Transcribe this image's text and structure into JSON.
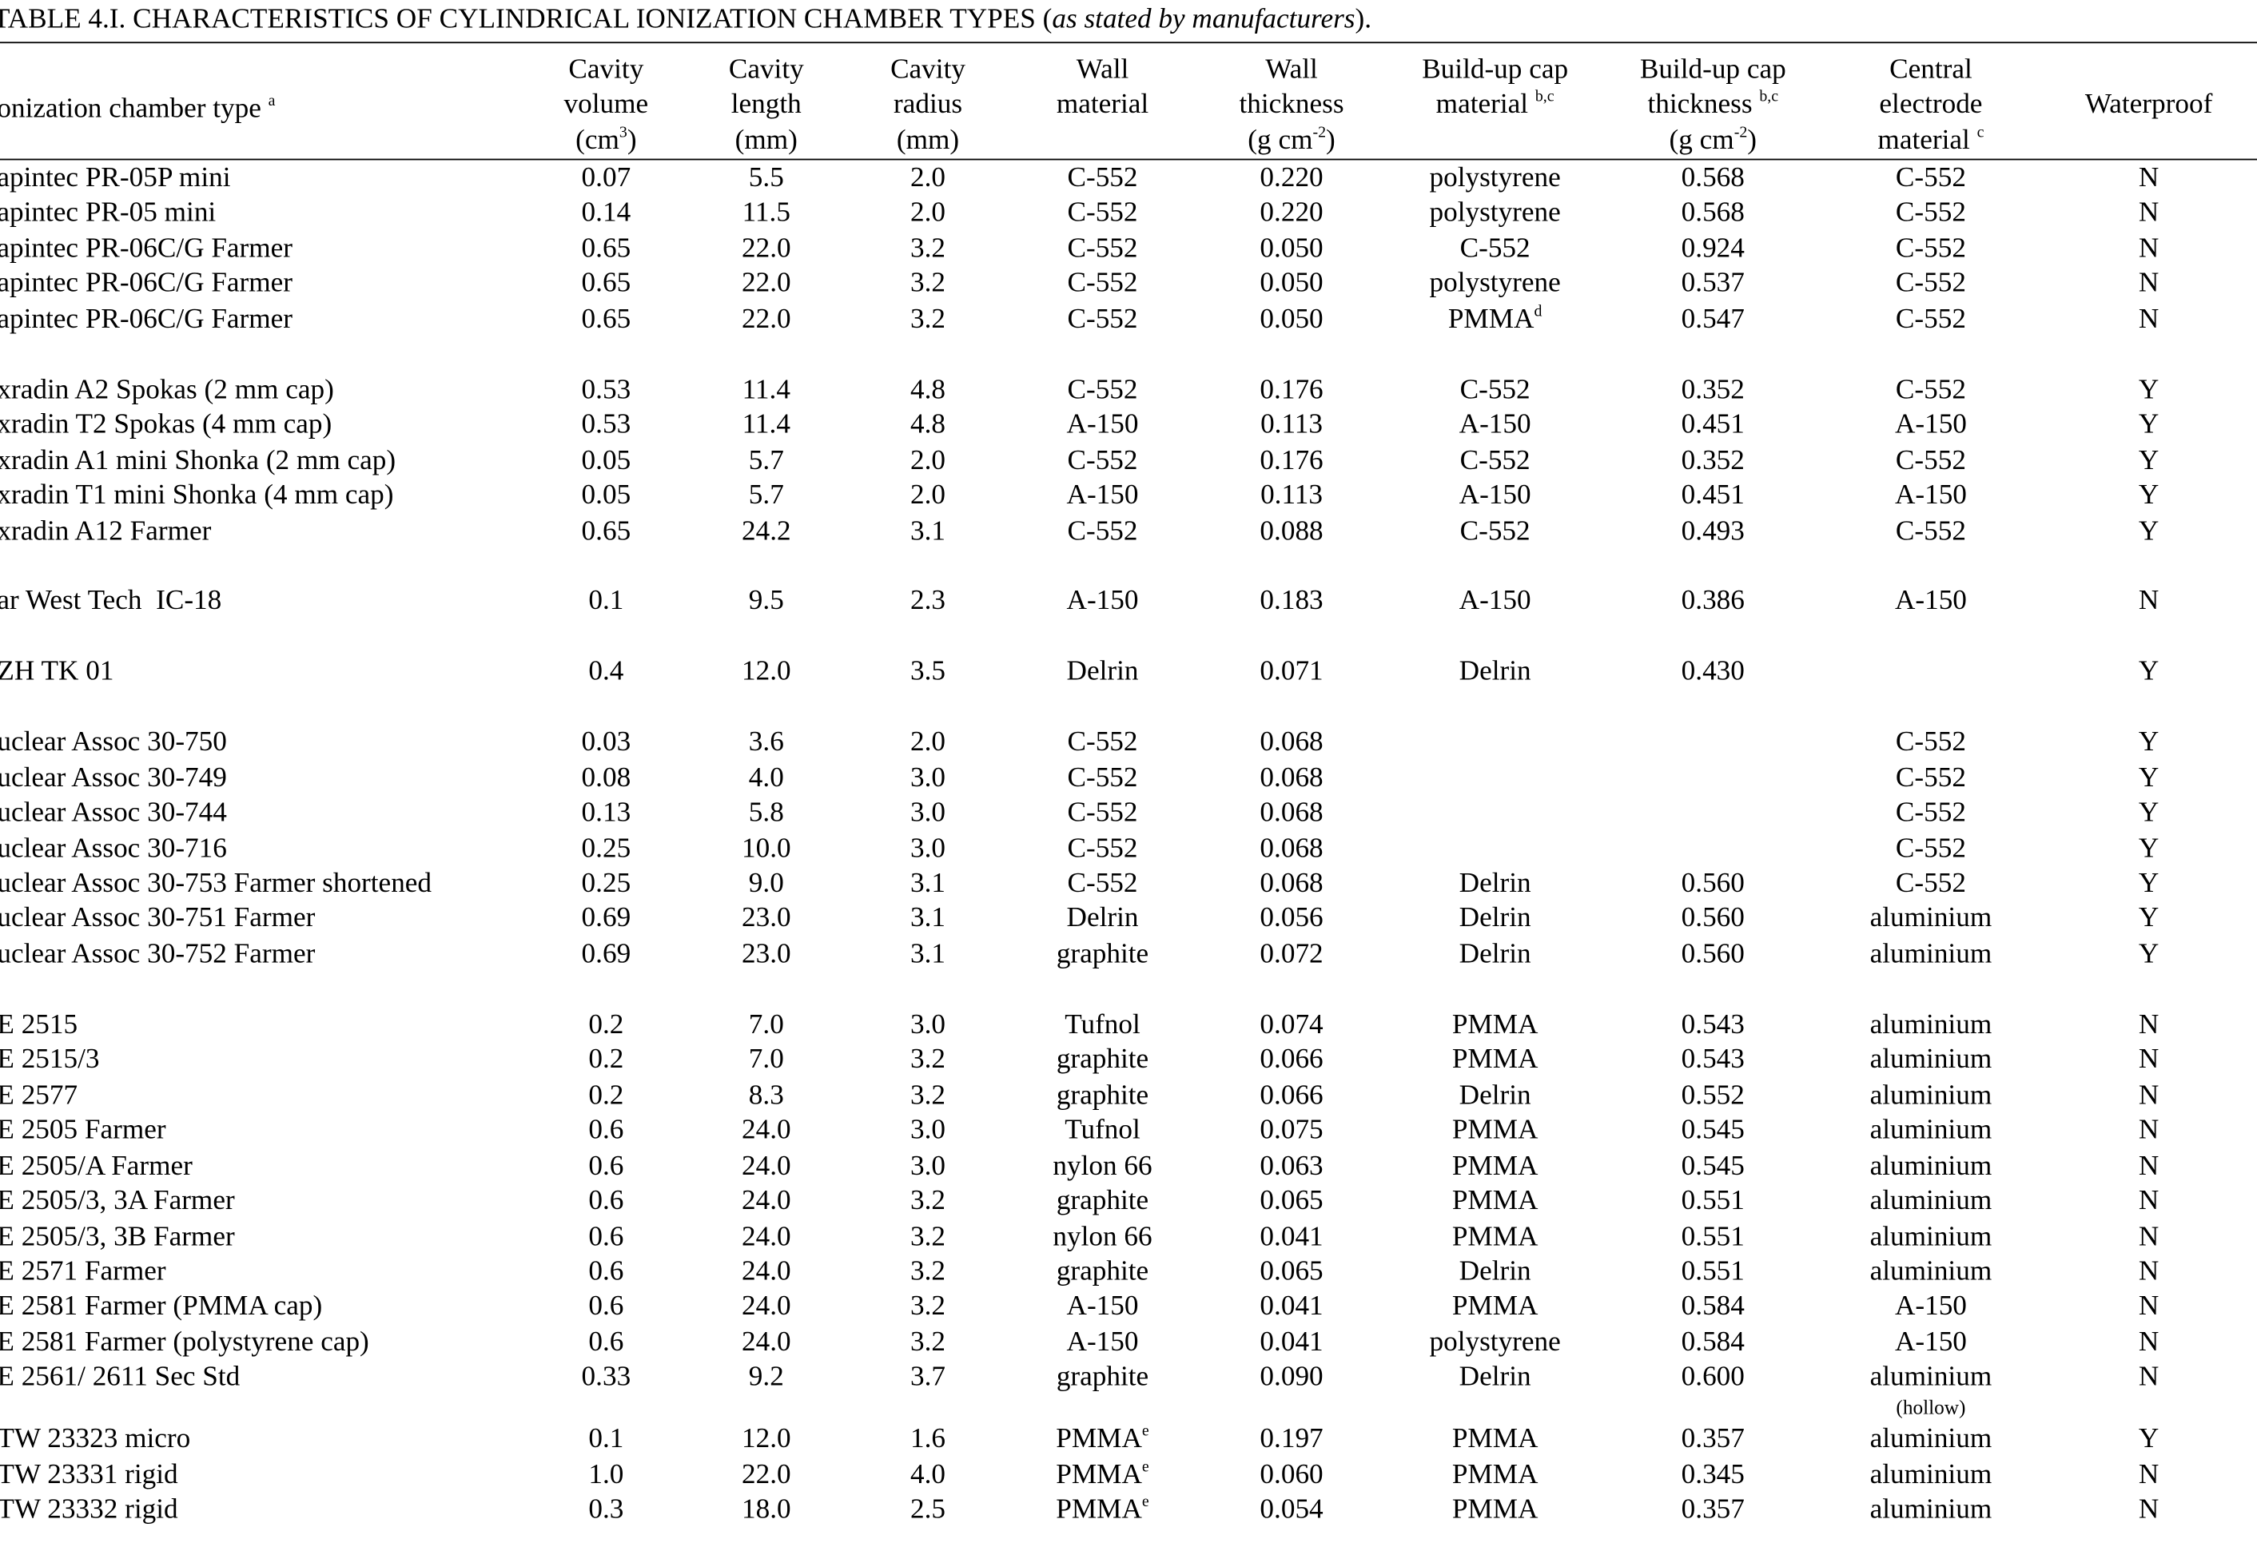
{
  "title": [
    {
      "text": "TABLE 4.I. CHARACTERISTICS OF CYLINDRICAL IONIZATION CHAMBER TYPES ("
    },
    {
      "italic": "as stated by manufacturers"
    },
    {
      "text": ")."
    }
  ],
  "header": {
    "columns": [
      {
        "lines": [
          [
            {
              "text": "onization chamber type "
            },
            {
              "sup": "a"
            }
          ]
        ]
      },
      {
        "lines": [
          [
            {
              "text": "Cavity"
            }
          ],
          [
            {
              "text": "volume"
            }
          ],
          [
            {
              "text": "(cm"
            },
            {
              "sup": "3"
            },
            {
              "text": ")"
            }
          ]
        ]
      },
      {
        "lines": [
          [
            {
              "text": "Cavity"
            }
          ],
          [
            {
              "text": "length"
            }
          ],
          [
            {
              "text": "(mm)"
            }
          ]
        ]
      },
      {
        "lines": [
          [
            {
              "text": "Cavity"
            }
          ],
          [
            {
              "text": "radius"
            }
          ],
          [
            {
              "text": "(mm)"
            }
          ]
        ]
      },
      {
        "lines": [
          [
            {
              "text": "Wall"
            }
          ],
          [
            {
              "text": "material"
            }
          ]
        ]
      },
      {
        "lines": [
          [
            {
              "text": "Wall"
            }
          ],
          [
            {
              "text": "thickness"
            }
          ],
          [
            {
              "text": "(g cm"
            },
            {
              "sup": "-2"
            },
            {
              "text": ")"
            }
          ]
        ]
      },
      {
        "lines": [
          [
            {
              "text": "Build-up cap"
            }
          ],
          [
            {
              "text": "material "
            },
            {
              "sup": "b,c"
            }
          ]
        ]
      },
      {
        "lines": [
          [
            {
              "text": "Build-up cap"
            }
          ],
          [
            {
              "text": "thickness "
            },
            {
              "sup": "b,c"
            }
          ],
          [
            {
              "text": "(g cm"
            },
            {
              "sup": "-2"
            },
            {
              "text": ")"
            }
          ]
        ]
      },
      {
        "lines": [
          [
            {
              "text": "Central"
            }
          ],
          [
            {
              "text": "electrode"
            }
          ],
          [
            {
              "text": "material "
            },
            {
              "sup": "c"
            }
          ]
        ]
      },
      {
        "lines": [
          [
            {
              "text": "Waterproof"
            }
          ]
        ]
      }
    ]
  },
  "table": {
    "groups": [
      [
        [
          "apintec PR-05P mini",
          "0.07",
          "5.5",
          "2.0",
          "C-552",
          "0.220",
          "polystyrene",
          "0.568",
          "C-552",
          "N"
        ],
        [
          "apintec PR-05 mini",
          "0.14",
          "11.5",
          "2.0",
          "C-552",
          "0.220",
          "polystyrene",
          "0.568",
          "C-552",
          "N"
        ],
        [
          "apintec PR-06C/G Farmer",
          "0.65",
          "22.0",
          "3.2",
          "C-552",
          "0.050",
          "C-552",
          "0.924",
          "C-552",
          "N"
        ],
        [
          "apintec PR-06C/G Farmer",
          "0.65",
          "22.0",
          "3.2",
          "C-552",
          "0.050",
          "polystyrene",
          "0.537",
          "C-552",
          "N"
        ],
        [
          "apintec PR-06C/G Farmer",
          "0.65",
          "22.0",
          "3.2",
          "C-552",
          "0.050",
          {
            "text": "PMMA",
            "sup": "d"
          },
          "0.547",
          "C-552",
          "N"
        ]
      ],
      [
        [
          "xradin A2 Spokas (2 mm cap)",
          "0.53",
          "11.4",
          "4.8",
          "C-552",
          "0.176",
          "C-552",
          "0.352",
          "C-552",
          "Y"
        ],
        [
          "xradin T2 Spokas (4 mm cap)",
          "0.53",
          "11.4",
          "4.8",
          "A-150",
          "0.113",
          "A-150",
          "0.451",
          "A-150",
          "Y"
        ],
        [
          "xradin A1 mini Shonka (2 mm cap)",
          "0.05",
          "5.7",
          "2.0",
          "C-552",
          "0.176",
          "C-552",
          "0.352",
          "C-552",
          "Y"
        ],
        [
          "xradin T1 mini Shonka (4 mm cap)",
          "0.05",
          "5.7",
          "2.0",
          "A-150",
          "0.113",
          "A-150",
          "0.451",
          "A-150",
          "Y"
        ],
        [
          "xradin A12 Farmer",
          "0.65",
          "24.2",
          "3.1",
          "C-552",
          "0.088",
          "C-552",
          "0.493",
          "C-552",
          "Y"
        ]
      ],
      [
        [
          "ar West Tech  IC-18",
          "0.1",
          "9.5",
          "2.3",
          "A-150",
          "0.183",
          "A-150",
          "0.386",
          "A-150",
          "N"
        ]
      ],
      [
        [
          "ZH TK 01",
          "0.4",
          "12.0",
          "3.5",
          "Delrin",
          "0.071",
          "Delrin",
          "0.430",
          null,
          "Y"
        ]
      ],
      [
        [
          "uclear Assoc 30-750",
          "0.03",
          "3.6",
          "2.0",
          "C-552",
          "0.068",
          null,
          null,
          "C-552",
          "Y"
        ],
        [
          "uclear Assoc 30-749",
          "0.08",
          "4.0",
          "3.0",
          "C-552",
          "0.068",
          null,
          null,
          "C-552",
          "Y"
        ],
        [
          "uclear Assoc 30-744",
          "0.13",
          "5.8",
          "3.0",
          "C-552",
          "0.068",
          null,
          null,
          "C-552",
          "Y"
        ],
        [
          "uclear Assoc 30-716",
          "0.25",
          "10.0",
          "3.0",
          "C-552",
          "0.068",
          null,
          null,
          "C-552",
          "Y"
        ],
        [
          "uclear Assoc 30-753 Farmer shortened",
          "0.25",
          "9.0",
          "3.1",
          "C-552",
          "0.068",
          "Delrin",
          "0.560",
          "C-552",
          "Y"
        ],
        [
          "uclear Assoc 30-751 Farmer",
          "0.69",
          "23.0",
          "3.1",
          "Delrin",
          "0.056",
          "Delrin",
          "0.560",
          "aluminium",
          "Y"
        ],
        [
          "uclear Assoc 30-752 Farmer",
          "0.69",
          "23.0",
          "3.1",
          "graphite",
          "0.072",
          "Delrin",
          "0.560",
          "aluminium",
          "Y"
        ]
      ],
      [
        [
          "E 2515",
          "0.2",
          "7.0",
          "3.0",
          "Tufnol",
          "0.074",
          "PMMA",
          "0.543",
          "aluminium",
          "N"
        ],
        [
          "E 2515/3",
          "0.2",
          "7.0",
          "3.2",
          "graphite",
          "0.066",
          "PMMA",
          "0.543",
          "aluminium",
          "N"
        ],
        [
          "E 2577",
          "0.2",
          "8.3",
          "3.2",
          "graphite",
          "0.066",
          "Delrin",
          "0.552",
          "aluminium",
          "N"
        ],
        [
          "E 2505 Farmer",
          "0.6",
          "24.0",
          "3.0",
          "Tufnol",
          "0.075",
          "PMMA",
          "0.545",
          "aluminium",
          "N"
        ],
        [
          "E 2505/A Farmer",
          "0.6",
          "24.0",
          "3.0",
          "nylon 66",
          "0.063",
          "PMMA",
          "0.545",
          "aluminium",
          "N"
        ],
        [
          "E 2505/3, 3A Farmer",
          "0.6",
          "24.0",
          "3.2",
          "graphite",
          "0.065",
          "PMMA",
          "0.551",
          "aluminium",
          "N"
        ],
        [
          "E 2505/3, 3B Farmer",
          "0.6",
          "24.0",
          "3.2",
          "nylon 66",
          "0.041",
          "PMMA",
          "0.551",
          "aluminium",
          "N"
        ],
        [
          "E 2571 Farmer",
          "0.6",
          "24.0",
          "3.2",
          "graphite",
          "0.065",
          "Delrin",
          "0.551",
          "aluminium",
          "N"
        ],
        [
          "E 2581 Farmer (PMMA cap)",
          "0.6",
          "24.0",
          "3.2",
          "A-150",
          "0.041",
          "PMMA",
          "0.584",
          "A-150",
          "N"
        ],
        [
          "E 2581 Farmer (polystyrene cap)",
          "0.6",
          "24.0",
          "3.2",
          "A-150",
          "0.041",
          "polystyrene",
          "0.584",
          "A-150",
          "N"
        ],
        [
          "E 2561/ 2611 Sec Std",
          "0.33",
          "9.2",
          "3.7",
          "graphite",
          "0.090",
          "Delrin",
          "0.600",
          {
            "text": "aluminium",
            "note": "(hollow)"
          },
          "N"
        ],
        [
          "TW 23323 micro",
          "0.1",
          "12.0",
          "1.6",
          {
            "text": "PMMA",
            "sup": "e"
          },
          "0.197",
          "PMMA",
          "0.357",
          "aluminium",
          "Y"
        ],
        [
          "TW 23331 rigid",
          "1.0",
          "22.0",
          "4.0",
          {
            "text": "PMMA",
            "sup": "e"
          },
          "0.060",
          "PMMA",
          "0.345",
          "aluminium",
          "N"
        ],
        [
          "TW 23332 rigid",
          "0.3",
          "18.0",
          "2.5",
          {
            "text": "PMMA",
            "sup": "e"
          },
          "0.054",
          "PMMA",
          "0.357",
          "aluminium",
          "N"
        ]
      ]
    ]
  }
}
